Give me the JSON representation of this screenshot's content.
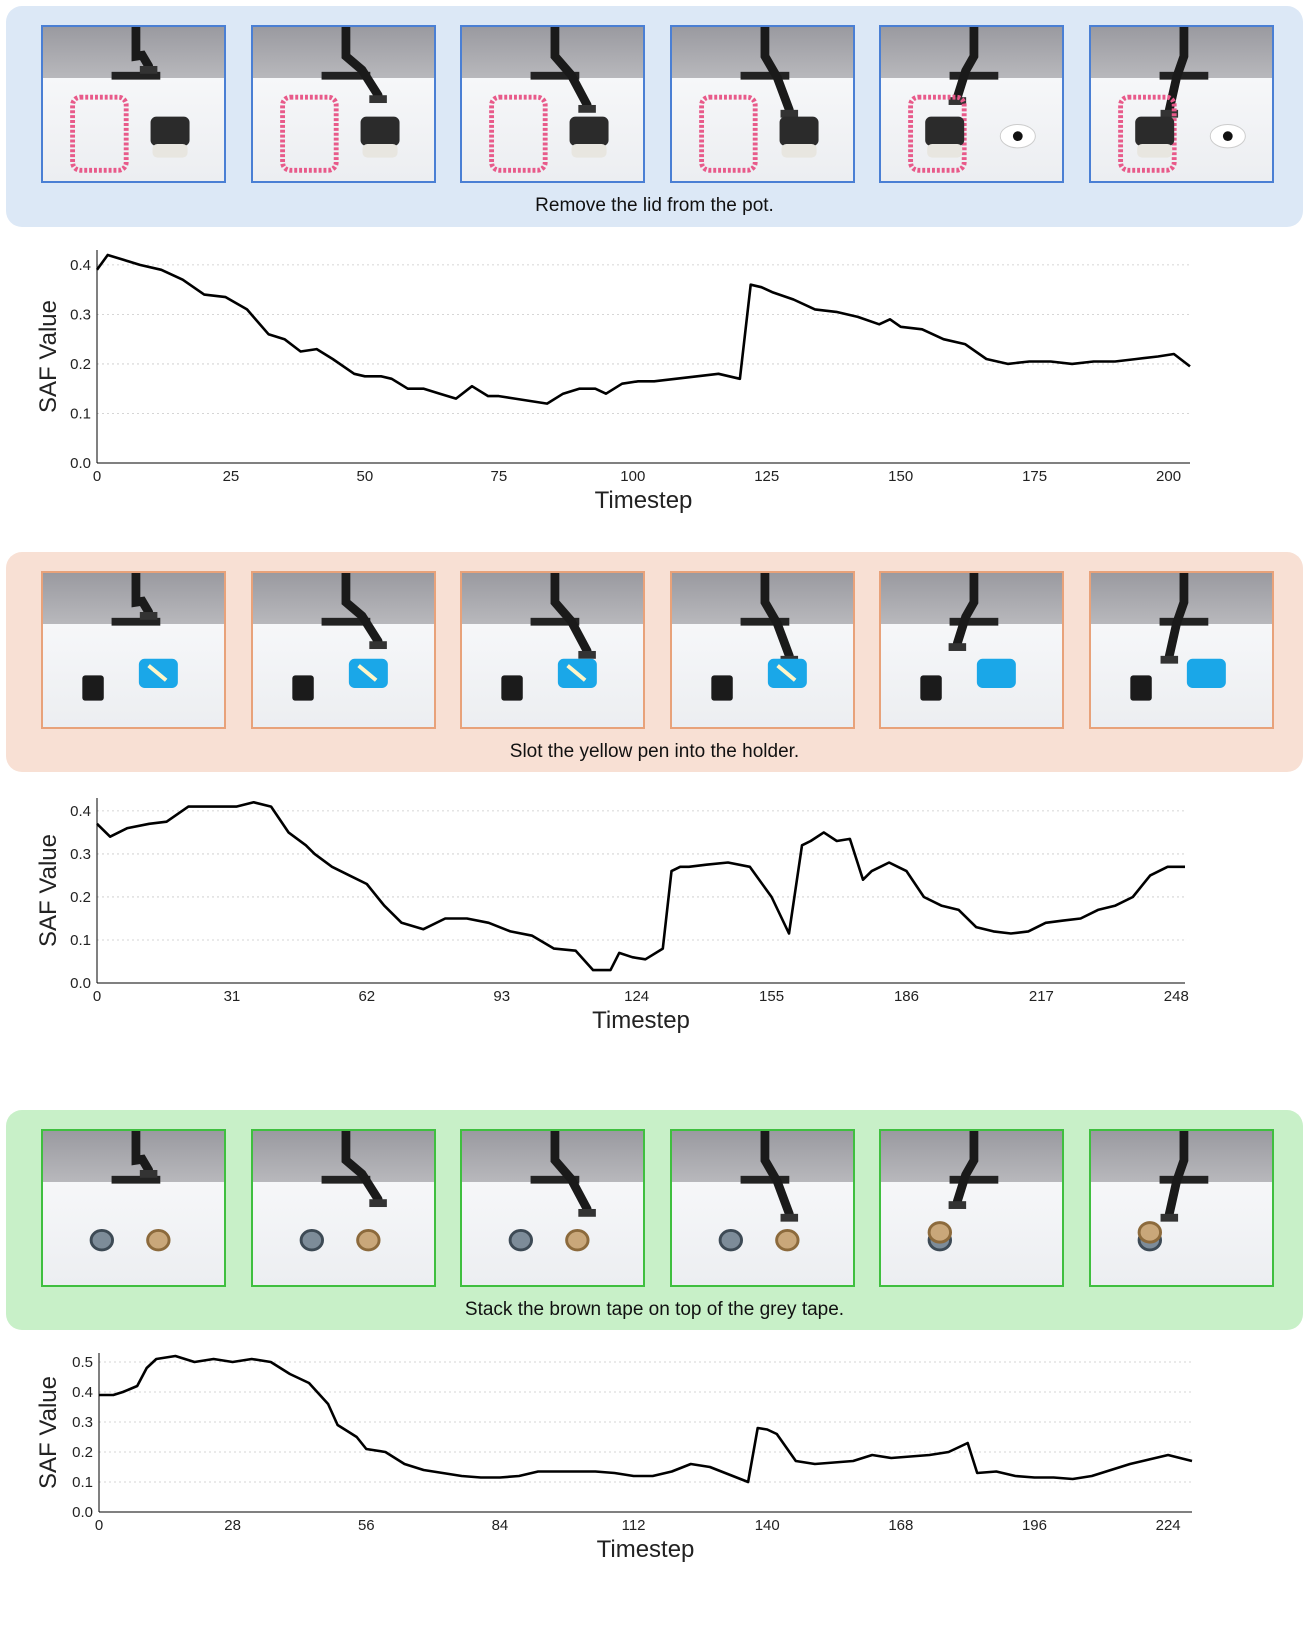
{
  "panels": [
    {
      "caption": "Remove the lid from the pot.",
      "scene": "pot",
      "frame_count": 6
    },
    {
      "caption": "Slot the yellow pen into the holder.",
      "scene": "pen",
      "frame_count": 6
    },
    {
      "caption": "Stack the brown tape on top of the grey tape.",
      "scene": "tape",
      "frame_count": 6
    }
  ],
  "frame_labels": [
    "frame-1",
    "frame-2",
    "frame-3",
    "frame-4",
    "frame-5",
    "frame-6"
  ],
  "chart_data": [
    {
      "type": "line",
      "xlabel": "Timestep",
      "ylabel": "SAF Value",
      "xlim": [
        0,
        204
      ],
      "ylim": [
        0,
        0.43
      ],
      "xticks": [
        0,
        25,
        50,
        75,
        100,
        125,
        150,
        175,
        200
      ],
      "yticks": [
        0.0,
        0.1,
        0.2,
        0.3,
        0.4
      ],
      "grid": "horizontal dotted",
      "series": [
        {
          "color": "#000000",
          "x": [
            0,
            2,
            5,
            8,
            12,
            16,
            20,
            24,
            28,
            32,
            35,
            38,
            41,
            44,
            48,
            50,
            53,
            55,
            58,
            61,
            64,
            67,
            70,
            73,
            75,
            78,
            81,
            84,
            87,
            90,
            93,
            95,
            98,
            101,
            104,
            108,
            112,
            116,
            120,
            122,
            124,
            126,
            130,
            134,
            138,
            142,
            146,
            148,
            150,
            154,
            158,
            162,
            166,
            170,
            174,
            178,
            182,
            186,
            190,
            194,
            198,
            201,
            204
          ],
          "y": [
            0.39,
            0.42,
            0.41,
            0.4,
            0.39,
            0.37,
            0.34,
            0.335,
            0.31,
            0.26,
            0.25,
            0.225,
            0.23,
            0.21,
            0.18,
            0.175,
            0.175,
            0.17,
            0.15,
            0.15,
            0.14,
            0.13,
            0.155,
            0.135,
            0.135,
            0.13,
            0.125,
            0.12,
            0.14,
            0.15,
            0.15,
            0.14,
            0.16,
            0.165,
            0.165,
            0.17,
            0.175,
            0.18,
            0.17,
            0.36,
            0.355,
            0.345,
            0.33,
            0.31,
            0.305,
            0.295,
            0.28,
            0.29,
            0.275,
            0.27,
            0.25,
            0.24,
            0.21,
            0.2,
            0.205,
            0.205,
            0.2,
            0.205,
            0.205,
            0.21,
            0.215,
            0.22,
            0.195
          ]
        }
      ]
    },
    {
      "type": "line",
      "xlabel": "Timestep",
      "ylabel": "SAF Value",
      "xlim": [
        0,
        250
      ],
      "ylim": [
        0,
        0.43
      ],
      "xticks": [
        0,
        31,
        62,
        93,
        124,
        155,
        186,
        217,
        248
      ],
      "yticks": [
        0.0,
        0.1,
        0.2,
        0.3,
        0.4
      ],
      "grid": "horizontal dotted",
      "series": [
        {
          "color": "#000000",
          "x": [
            0,
            3,
            7,
            12,
            16,
            21,
            25,
            28,
            32,
            36,
            40,
            44,
            48,
            50,
            54,
            58,
            62,
            66,
            70,
            75,
            80,
            85,
            90,
            95,
            100,
            105,
            110,
            114,
            118,
            120,
            123,
            126,
            130,
            132,
            134,
            136,
            140,
            145,
            150,
            155,
            159,
            162,
            164,
            167,
            170,
            173,
            176,
            178,
            180,
            182,
            184,
            186,
            190,
            194,
            198,
            202,
            206,
            210,
            214,
            218,
            222,
            226,
            230,
            234,
            238,
            242,
            246,
            250
          ],
          "y": [
            0.37,
            0.34,
            0.36,
            0.37,
            0.375,
            0.41,
            0.41,
            0.41,
            0.41,
            0.42,
            0.41,
            0.35,
            0.32,
            0.3,
            0.27,
            0.25,
            0.23,
            0.18,
            0.14,
            0.125,
            0.15,
            0.15,
            0.14,
            0.12,
            0.11,
            0.08,
            0.075,
            0.03,
            0.03,
            0.07,
            0.06,
            0.055,
            0.08,
            0.26,
            0.27,
            0.27,
            0.275,
            0.28,
            0.27,
            0.2,
            0.115,
            0.32,
            0.33,
            0.35,
            0.33,
            0.335,
            0.24,
            0.26,
            0.27,
            0.28,
            0.27,
            0.26,
            0.2,
            0.18,
            0.17,
            0.13,
            0.12,
            0.115,
            0.12,
            0.14,
            0.145,
            0.15,
            0.17,
            0.18,
            0.2,
            0.25,
            0.27,
            0.27
          ]
        }
      ]
    },
    {
      "type": "line",
      "xlabel": "Timestep",
      "ylabel": "SAF Value",
      "xlim": [
        0,
        229
      ],
      "ylim": [
        0,
        0.53
      ],
      "xticks": [
        0,
        28,
        56,
        84,
        112,
        140,
        168,
        196,
        224
      ],
      "yticks": [
        0.0,
        0.1,
        0.2,
        0.3,
        0.4,
        0.5
      ],
      "grid": "horizontal dotted",
      "series": [
        {
          "color": "#000000",
          "x": [
            0,
            3,
            5,
            8,
            10,
            12,
            16,
            20,
            24,
            28,
            32,
            36,
            40,
            44,
            48,
            50,
            52,
            54,
            56,
            60,
            64,
            68,
            72,
            76,
            80,
            84,
            88,
            92,
            96,
            100,
            104,
            108,
            112,
            116,
            120,
            124,
            128,
            132,
            136,
            138,
            140,
            142,
            146,
            150,
            154,
            158,
            162,
            166,
            170,
            174,
            178,
            182,
            184,
            188,
            192,
            196,
            200,
            204,
            208,
            212,
            216,
            220,
            224,
            229
          ],
          "y": [
            0.39,
            0.39,
            0.4,
            0.42,
            0.48,
            0.51,
            0.52,
            0.5,
            0.51,
            0.5,
            0.51,
            0.5,
            0.46,
            0.43,
            0.36,
            0.29,
            0.27,
            0.25,
            0.21,
            0.2,
            0.16,
            0.14,
            0.13,
            0.12,
            0.115,
            0.115,
            0.12,
            0.135,
            0.135,
            0.135,
            0.135,
            0.13,
            0.12,
            0.12,
            0.135,
            0.16,
            0.15,
            0.125,
            0.1,
            0.28,
            0.275,
            0.26,
            0.17,
            0.16,
            0.165,
            0.17,
            0.19,
            0.18,
            0.185,
            0.19,
            0.2,
            0.23,
            0.13,
            0.135,
            0.12,
            0.115,
            0.115,
            0.11,
            0.12,
            0.14,
            0.16,
            0.175,
            0.19,
            0.17
          ]
        }
      ]
    }
  ]
}
